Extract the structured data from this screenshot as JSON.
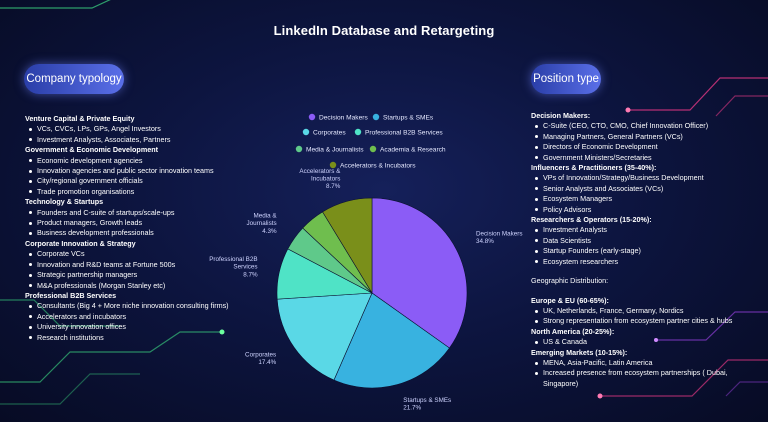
{
  "title": "LinkedIn Database and Retargeting",
  "left_panel": {
    "pill": "Company typology",
    "sections": [
      {
        "heading": "Venture Capital & Private Equity",
        "items": [
          "VCs, CVCs,  LPs, GPs, Angel Investors",
          "Investment Analysts, Associates, Partners"
        ]
      },
      {
        "heading": "Government & Economic Development",
        "items": [
          "Economic development agencies",
          "Innovation agencies and public sector innovation teams",
          "City/regional government officials",
          "Trade promotion organisations"
        ]
      },
      {
        "heading": "Technology & Startups",
        "items": [
          "Founders and C-suite of startups/scale-ups",
          "Product managers, Growth leads",
          "Business development professionals"
        ]
      },
      {
        "heading": "Corporate Innovation & Strategy",
        "items": [
          "Corporate VCs",
          "Innovation and R&D teams at Fortune 500s",
          "Strategic partnership managers",
          "M&A professionals (Morgan Stanley etc)"
        ]
      },
      {
        "heading": "Professional  B2B Services",
        "items": [
          "Consultants  (Big 4 + More niche innovation consulting firms)",
          "Accelerators and incubators",
          "University innovation offices",
          "Research institutions"
        ]
      }
    ]
  },
  "right_panel": {
    "pill": "Position type",
    "sections": [
      {
        "heading": "Decision Makers:",
        "items": [
          "C-Suite (CEO, CTO, CMO, Chief Innovation Officer)",
          "Managing Partners, General Partners (VCs)",
          "Directors of Economic Development",
          "Government Ministers/Secretaries"
        ]
      },
      {
        "heading": "Influencers & Practitioners (35-40%):",
        "items": [
          "VPs of Innovation/Strategy/Business Development",
          "Senior Analysts and Associates (VCs)",
          "Ecosystem Managers",
          "Policy Advisors"
        ]
      },
      {
        "heading": "Researchers & Operators (15-20%):",
        "items": [
          "Investment Analysts",
          "Data Scientists",
          "Startup Founders (early-stage)",
          "Ecosystem researchers"
        ]
      }
    ],
    "geo_heading": "Geographic Distribution:",
    "geo_sections": [
      {
        "heading": "Europe & EU (60-65%):",
        "items": [
          "UK, Netherlands, France, Germany, Nordics",
          "Strong representation from ecosystem partner cities &  hubs"
        ]
      },
      {
        "heading": "North America (20-25%):",
        "items": [
          "US & Canada"
        ]
      },
      {
        "heading": "Emerging Markets (10-15%):",
        "items": [
          "MENA, Asia-Pacific, Latin America",
          "Increased presence from ecosystem partnerships ( Dubai, Singapore)"
        ]
      }
    ]
  },
  "chart_data": {
    "type": "pie",
    "title": "",
    "slices": [
      {
        "label": "Decision Makers",
        "value": 34.8,
        "pct_label": "34.8%",
        "color": "#8b5cf6"
      },
      {
        "label": "Startups & SMEs",
        "value": 21.7,
        "pct_label": "21.7%",
        "color": "#38b2e0"
      },
      {
        "label": "Corporates",
        "value": 17.4,
        "pct_label": "17.4%",
        "color": "#5ad8e6"
      },
      {
        "label": "Professional B2B Services",
        "value": 8.7,
        "pct_label": "8.7%",
        "color": "#4fe3c6"
      },
      {
        "label": "Media & Journalists",
        "value": 4.3,
        "pct_label": "4.3%",
        "color": "#5fc98a"
      },
      {
        "label": "Academia & Research",
        "value": 4.3,
        "pct_label": "",
        "color": "#6fbe4e"
      },
      {
        "label": "Accelerators & Incubators",
        "value": 8.7,
        "pct_label": "8.7%",
        "color": "#7a8f1a"
      }
    ],
    "legend_rows": [
      [
        "Decision Makers",
        "Startups & SMEs"
      ],
      [
        "Corporates",
        "Professional B2B Services"
      ],
      [
        "Media & Journalists",
        "Academia & Research"
      ],
      [
        "Accelerators & Incubators"
      ]
    ]
  },
  "colors": {
    "accent_pill": "#5a6fe8",
    "background": "#0b1030"
  }
}
